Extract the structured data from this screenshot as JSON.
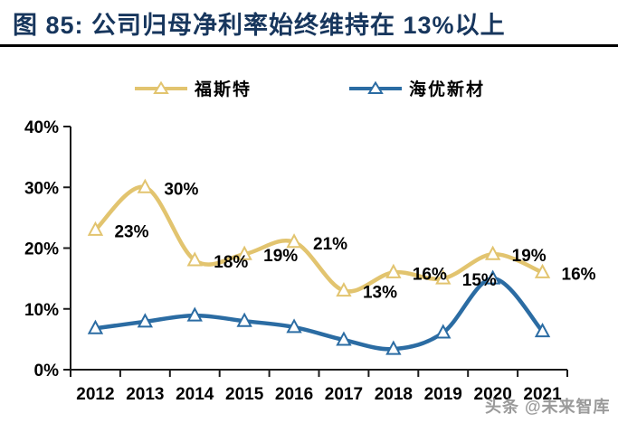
{
  "title": "图 85:  公司归母净利率始终维持在 13%以上",
  "watermark": "头条 @未来智库",
  "colors": {
    "title": "#17365D",
    "divider": "#000000",
    "axis": "#1a1a1a",
    "data_label": "#000000",
    "watermark": "#8D8D8D",
    "foster_gold": "#E2C46F",
    "haiyou_blue": "#2B6CA3"
  },
  "chart_data": {
    "type": "line",
    "title": "公司归母净利率始终维持在13%以上",
    "categories": [
      "2012",
      "2013",
      "2014",
      "2015",
      "2016",
      "2017",
      "2018",
      "2019",
      "2020",
      "2021"
    ],
    "series": [
      {
        "name": "福斯特",
        "color": "#E2C46F",
        "smooth": true,
        "marker": "triangle-up",
        "values": [
          23,
          30,
          18,
          19,
          21,
          13,
          16,
          15,
          19,
          16
        ],
        "point_labels": [
          "23%",
          "30%",
          "18%",
          "19%",
          "21%",
          "13%",
          "16%",
          "15%",
          "19%",
          "16%"
        ]
      },
      {
        "name": "海优新材",
        "color": "#2B6CA3",
        "smooth": true,
        "marker": "triangle-up",
        "values": [
          6.8,
          7.9,
          8.9,
          8.0,
          7.0,
          4.9,
          3.4,
          6.1,
          15.0,
          6.3
        ],
        "point_labels": []
      }
    ],
    "xlabel": "",
    "ylabel": "",
    "ylim": [
      0,
      40
    ],
    "y_ticks": [
      "0%",
      "10%",
      "20%",
      "30%",
      "40%"
    ],
    "y_tick_values": [
      0,
      10,
      20,
      30,
      40
    ],
    "grid": false,
    "legend_position": "top-center"
  }
}
